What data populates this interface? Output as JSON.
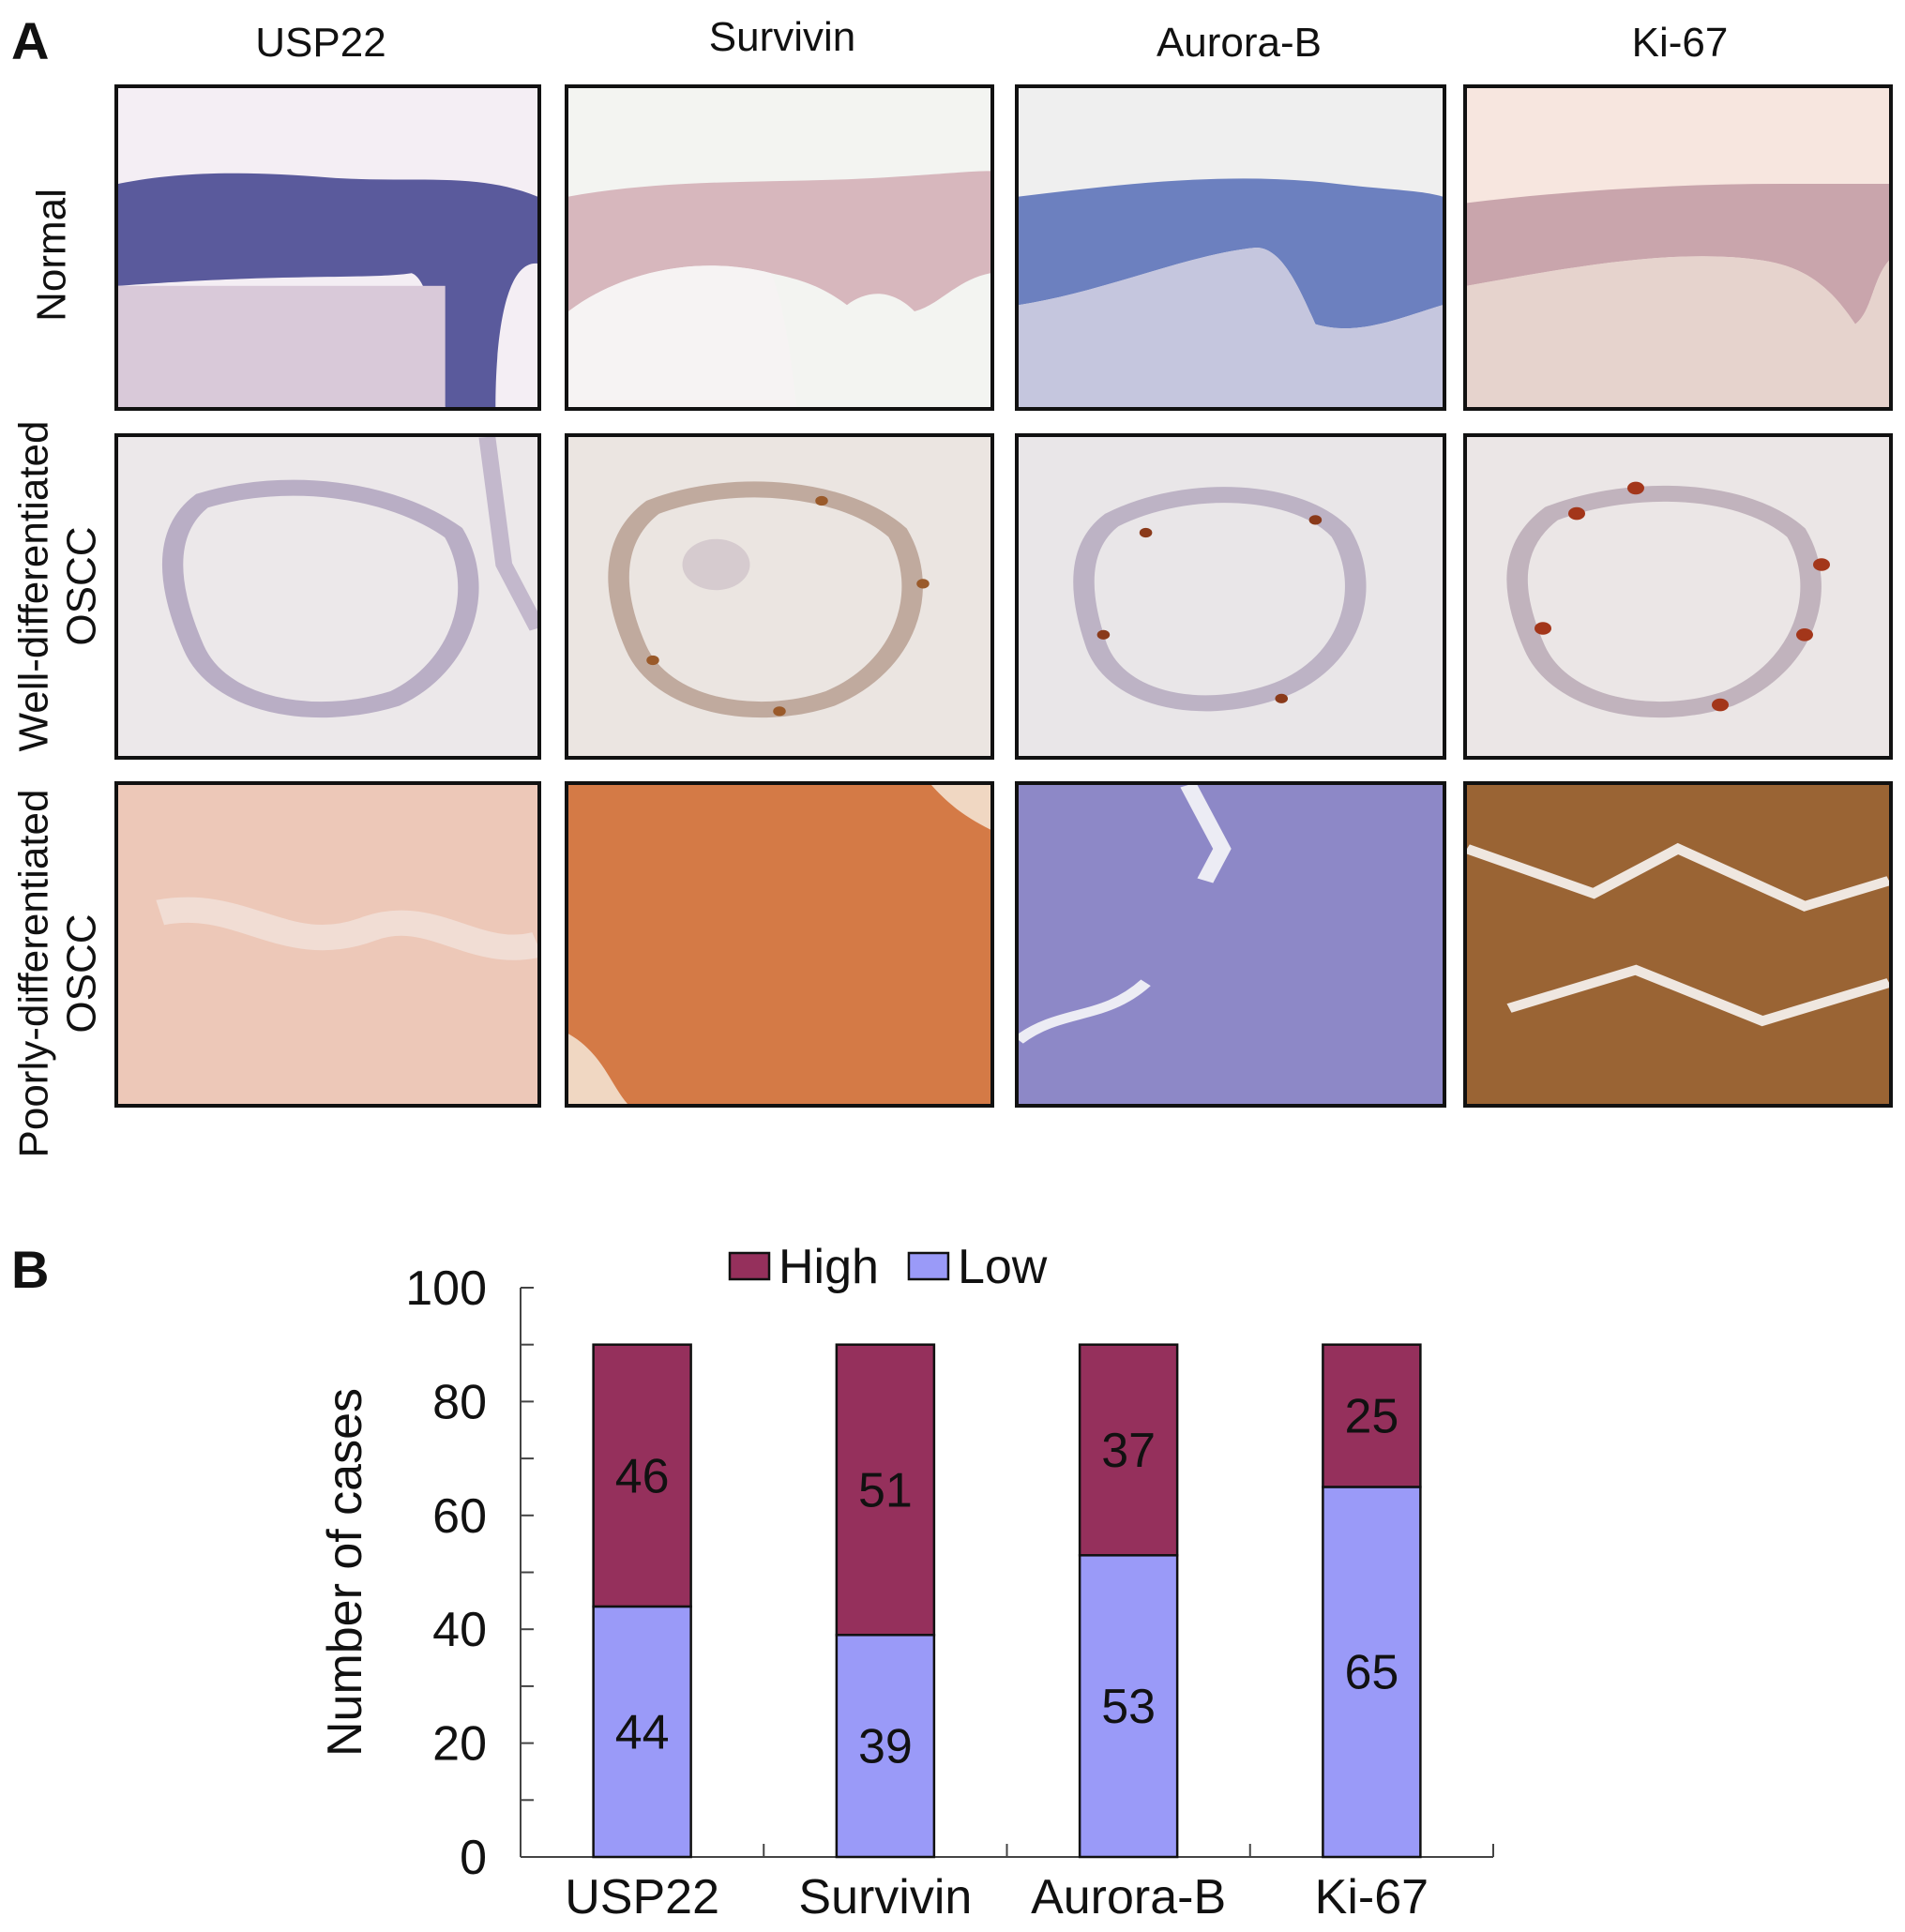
{
  "panel_a": {
    "letter": "A",
    "columns": [
      "USP22",
      "Survivin",
      "Aurora-B",
      "Ki-67"
    ],
    "rows": [
      {
        "lines": [
          "Normal"
        ]
      },
      {
        "lines": [
          "Well-differentiated",
          "OSCC"
        ]
      },
      {
        "lines": [
          "Poorly-differentiated",
          "OSCC"
        ]
      }
    ]
  },
  "panel_b": {
    "letter": "B"
  },
  "colors": {
    "high": "#95305C",
    "low": "#9A9AF8"
  },
  "chart_data": {
    "type": "bar",
    "stacked": true,
    "categories": [
      "USP22",
      "Survivin",
      "Aurora-B",
      "Ki-67"
    ],
    "series": [
      {
        "name": "Low",
        "values": [
          44,
          39,
          53,
          65
        ],
        "color": "#9A9AF8"
      },
      {
        "name": "High",
        "values": [
          46,
          51,
          37,
          25
        ],
        "color": "#95305C"
      }
    ],
    "legend_order": [
      "High",
      "Low"
    ],
    "legend_position": "top",
    "ylabel": "Number of cases",
    "xlabel": "",
    "ylim": [
      0,
      100
    ],
    "yticks": [
      0,
      20,
      40,
      60,
      80,
      100
    ],
    "grid": false
  }
}
